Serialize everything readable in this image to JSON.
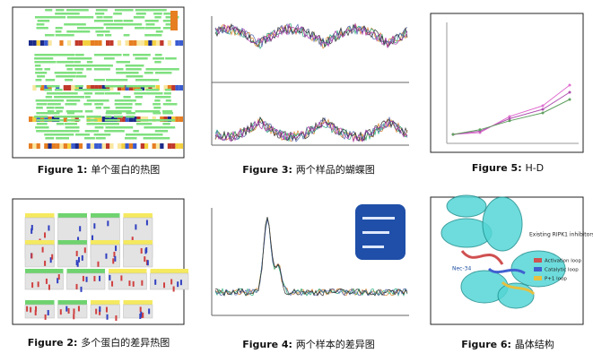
{
  "figures": [
    {
      "label": "Figure 1:",
      "caption": "单个蛋白的热图"
    },
    {
      "label": "Figure 3:",
      "caption": "两个样品的蝴蝶图"
    },
    {
      "label": "Figure 5:",
      "caption": "H-D"
    },
    {
      "label": "Figure 2:",
      "caption": "多个蛋白的差异热图"
    },
    {
      "label": "Figure 4:",
      "caption": "两个样本的差异图"
    },
    {
      "label": "Figure 6:",
      "caption": "晶体结构"
    }
  ],
  "figure6_legend": {
    "title": "Existing RIPK1 inhibitors",
    "items": [
      "Activation loop",
      "Catalytic loop",
      "P+1 loop"
    ],
    "residue": "Nec-34"
  }
}
